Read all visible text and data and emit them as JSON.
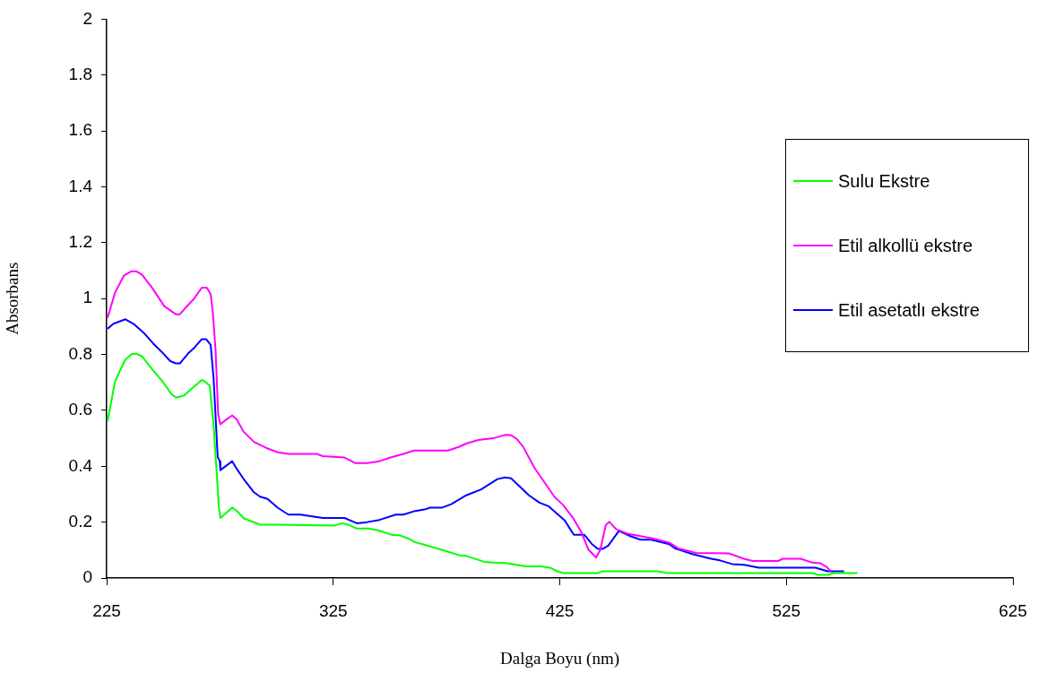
{
  "chart_data": {
    "type": "line",
    "xlabel": "Dalga Boyu (nm)",
    "ylabel": "Absorbans",
    "xlim": [
      225,
      625
    ],
    "xticks": [
      225,
      325,
      425,
      525,
      625
    ],
    "ylim": [
      0,
      2
    ],
    "yticks": [
      0,
      0.2,
      0.4,
      0.6,
      0.8,
      1,
      1.2,
      1.4,
      1.6,
      1.8,
      2
    ],
    "grid": false,
    "legend": "right",
    "marker": "none",
    "line_style": "solid",
    "series": [
      {
        "name": "Sulu Ekstre",
        "color": "#00ff00",
        "x": [
          225.4,
          228.7,
          233.1,
          236,
          238,
          240.6,
          245.2,
          249.8,
          253.8,
          255.8,
          259.1,
          262.4,
          267,
          268.9,
          270.5,
          272.2,
          274,
          274.5,
          275.2,
          280.4,
          282.8,
          285.4,
          292.7,
          300.6,
          325.6,
          328.9,
          331.5,
          335.4,
          340.7,
          345.4,
          350.6,
          354.6,
          357.9,
          361.2,
          366.5,
          373.1,
          381,
          383.7,
          391.6,
          395.6,
          400.8,
          410.1,
          416.7,
          420.6,
          423.9,
          426.5,
          441.8,
          443.8,
          468.3,
          472.3,
          536.3,
          538.9,
          543.5,
          546.1,
          556.4
        ],
        "values": [
          0.561,
          0.704,
          0.78,
          0.801,
          0.803,
          0.793,
          0.746,
          0.702,
          0.656,
          0.646,
          0.653,
          0.677,
          0.709,
          0.7,
          0.688,
          0.545,
          0.323,
          0.254,
          0.215,
          0.252,
          0.238,
          0.214,
          0.191,
          0.191,
          0.188,
          0.196,
          0.191,
          0.177,
          0.177,
          0.169,
          0.155,
          0.152,
          0.142,
          0.128,
          0.116,
          0.1,
          0.081,
          0.079,
          0.058,
          0.055,
          0.054,
          0.042,
          0.042,
          0.037,
          0.024,
          0.018,
          0.018,
          0.024,
          0.024,
          0.018,
          0.018,
          0.011,
          0.011,
          0.018,
          0.018
        ]
      },
      {
        "name": "Etil alkollü ekstre",
        "color": "#ff00ff",
        "x": [
          225.4,
          228.7,
          232.7,
          236,
          238,
          240.6,
          245.2,
          250.4,
          255.5,
          257.3,
          259.7,
          263.6,
          267,
          269.2,
          270.9,
          271.9,
          273.1,
          274.2,
          275.2,
          276.8,
          280.4,
          282.4,
          285.4,
          290,
          295.3,
          300.6,
          305.2,
          317.7,
          320.4,
          330,
          334.8,
          340,
          345.4,
          350.6,
          356,
          360.6,
          375.7,
          380.4,
          383.7,
          389,
          395.6,
          400.8,
          403.5,
          406.1,
          408.7,
          414,
          422.6,
          426.5,
          431.1,
          434.5,
          437.7,
          441,
          442.9,
          445.3,
          446.9,
          449.8,
          454.8,
          465.4,
          473.3,
          477.2,
          485.1,
          499.6,
          506.2,
          510.2,
          521.4,
          523.4,
          531.3,
          536.6,
          539.9,
          542.9,
          544.5
        ],
        "values": [
          0.931,
          1.021,
          1.083,
          1.098,
          1.098,
          1.085,
          1.037,
          0.973,
          0.944,
          0.944,
          0.966,
          1.0,
          1.039,
          1.039,
          1.016,
          0.947,
          0.81,
          0.587,
          0.55,
          0.561,
          0.582,
          0.568,
          0.524,
          0.487,
          0.466,
          0.45,
          0.444,
          0.444,
          0.436,
          0.431,
          0.411,
          0.411,
          0.418,
          0.432,
          0.444,
          0.456,
          0.456,
          0.469,
          0.481,
          0.494,
          0.5,
          0.512,
          0.511,
          0.497,
          0.471,
          0.392,
          0.291,
          0.261,
          0.212,
          0.164,
          0.101,
          0.074,
          0.101,
          0.19,
          0.201,
          0.175,
          0.159,
          0.143,
          0.127,
          0.106,
          0.09,
          0.088,
          0.069,
          0.061,
          0.061,
          0.069,
          0.069,
          0.055,
          0.053,
          0.039,
          0.024
        ]
      },
      {
        "name": "Etil asetatlı ekstre",
        "color": "#0000ff",
        "x": [
          225.4,
          228,
          233.3,
          237.3,
          241.9,
          245.9,
          249.2,
          253.1,
          255.5,
          257.3,
          261,
          263.9,
          267,
          268.9,
          270.9,
          272.2,
          274,
          274.9,
          275.2,
          280.4,
          282.8,
          285.4,
          290,
          292.7,
          296,
          300.6,
          305.2,
          310.5,
          320.4,
          330,
          335.4,
          340,
          345.4,
          352.6,
          356,
          361.2,
          365.2,
          367.8,
          373.1,
          377.1,
          383.7,
          390.3,
          397.5,
          400.8,
          403.5,
          411.4,
          416,
          420,
          423.3,
          427.2,
          429.2,
          431.2,
          435.8,
          439.1,
          441.8,
          443.8,
          446.4,
          451.1,
          456.1,
          460.7,
          465.4,
          473.3,
          475.9,
          483.8,
          491.8,
          495.7,
          501,
          506.3,
          512.9,
          537.9,
          543.2,
          550.5
        ],
        "values": [
          0.892,
          0.91,
          0.926,
          0.907,
          0.873,
          0.836,
          0.81,
          0.776,
          0.768,
          0.768,
          0.804,
          0.826,
          0.855,
          0.855,
          0.834,
          0.714,
          0.434,
          0.418,
          0.386,
          0.418,
          0.386,
          0.355,
          0.307,
          0.291,
          0.283,
          0.251,
          0.227,
          0.227,
          0.215,
          0.215,
          0.196,
          0.2,
          0.208,
          0.227,
          0.227,
          0.24,
          0.245,
          0.252,
          0.252,
          0.264,
          0.296,
          0.317,
          0.354,
          0.36,
          0.357,
          0.296,
          0.27,
          0.257,
          0.233,
          0.206,
          0.18,
          0.155,
          0.155,
          0.122,
          0.104,
          0.104,
          0.116,
          0.169,
          0.15,
          0.137,
          0.137,
          0.121,
          0.106,
          0.085,
          0.069,
          0.063,
          0.05,
          0.047,
          0.037,
          0.037,
          0.024,
          0.024
        ]
      }
    ]
  }
}
